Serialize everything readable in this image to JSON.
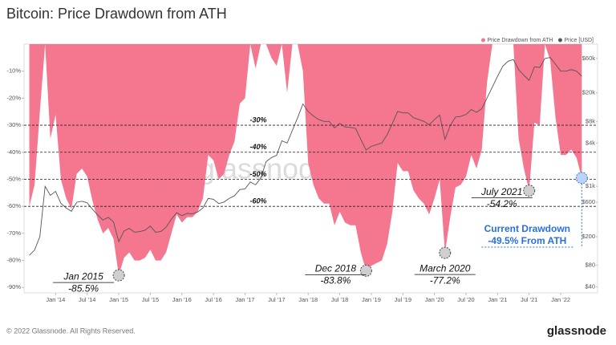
{
  "chart_data": {
    "type": "area",
    "title": "Bitcoin: Price Drawdown from ATH",
    "legend_position": "top-right",
    "x": [
      "2013-08",
      "2013-09",
      "2013-10",
      "2013-11",
      "2013-12",
      "2014-01",
      "2014-02",
      "2014-03",
      "2014-04",
      "2014-05",
      "2014-06",
      "2014-07",
      "2014-08",
      "2014-09",
      "2014-10",
      "2014-11",
      "2014-12",
      "2015-01",
      "2015-02",
      "2015-03",
      "2015-04",
      "2015-05",
      "2015-06",
      "2015-07",
      "2015-08",
      "2015-09",
      "2015-10",
      "2015-11",
      "2015-12",
      "2016-01",
      "2016-02",
      "2016-03",
      "2016-04",
      "2016-05",
      "2016-06",
      "2016-07",
      "2016-08",
      "2016-09",
      "2016-10",
      "2016-11",
      "2016-12",
      "2017-01",
      "2017-02",
      "2017-03",
      "2017-04",
      "2017-05",
      "2017-06",
      "2017-07",
      "2017-08",
      "2017-09",
      "2017-10",
      "2017-11",
      "2017-12",
      "2018-01",
      "2018-02",
      "2018-03",
      "2018-04",
      "2018-05",
      "2018-06",
      "2018-07",
      "2018-08",
      "2018-09",
      "2018-10",
      "2018-11",
      "2018-12",
      "2019-01",
      "2019-02",
      "2019-03",
      "2019-04",
      "2019-05",
      "2019-06",
      "2019-07",
      "2019-08",
      "2019-09",
      "2019-10",
      "2019-11",
      "2019-12",
      "2020-01",
      "2020-02",
      "2020-03",
      "2020-04",
      "2020-05",
      "2020-06",
      "2020-07",
      "2020-08",
      "2020-09",
      "2020-10",
      "2020-11",
      "2020-12",
      "2021-01",
      "2021-02",
      "2021-03",
      "2021-04",
      "2021-05",
      "2021-06",
      "2021-07",
      "2021-08",
      "2021-09",
      "2021-10",
      "2021-11",
      "2021-12",
      "2022-01",
      "2022-02",
      "2022-03",
      "2022-04",
      "2022-05"
    ],
    "series": [
      {
        "name": "Price Drawdown from ATH",
        "color": "#f4768f",
        "type": "area",
        "values": [
          -60,
          -52,
          -25,
          0,
          -35,
          -26,
          -50,
          -57,
          -61,
          -48,
          -46,
          -49,
          -58,
          -65,
          -70,
          -68,
          -72,
          -85.5,
          -79,
          -77,
          -80,
          -80,
          -79,
          -76,
          -80,
          -80,
          -77,
          -70,
          -63,
          -66,
          -64,
          -64,
          -62,
          -57,
          -41,
          -43,
          -50,
          -48,
          -41,
          -36,
          -22,
          -20,
          0,
          -9,
          0,
          0,
          -5,
          -8,
          0,
          -18,
          0,
          0,
          -10,
          -44,
          -52,
          -57,
          -59,
          -59,
          -67,
          -62,
          -66,
          -67,
          -67,
          -77,
          -83.8,
          -82,
          -81,
          -80,
          -74,
          -62,
          -44,
          -47,
          -47,
          -54,
          -57,
          -59,
          -63,
          -57,
          -50,
          -77.2,
          -64,
          -53,
          -52,
          -49,
          -41,
          -46,
          -39,
          -14,
          0,
          0,
          0,
          0,
          0,
          -35,
          -46,
          -54.2,
          -29,
          -30,
          0,
          -6,
          -27,
          -41,
          -41,
          -39,
          -42,
          -49.5
        ]
      },
      {
        "name": "Price [USD]",
        "color": "#555555",
        "type": "line",
        "axis": "y2",
        "values": [
          110,
          130,
          200,
          1000,
          750,
          850,
          580,
          500,
          450,
          600,
          620,
          590,
          480,
          400,
          340,
          370,
          320,
          170,
          240,
          260,
          230,
          235,
          245,
          280,
          230,
          235,
          270,
          350,
          430,
          390,
          420,
          415,
          440,
          500,
          680,
          660,
          575,
          605,
          680,
          740,
          900,
          920,
          1150,
          1050,
          1300,
          2200,
          2500,
          2700,
          4300,
          4000,
          6000,
          9000,
          14000,
          11000,
          9500,
          8500,
          8000,
          8000,
          6500,
          7500,
          6700,
          6600,
          6400,
          4500,
          3200,
          3600,
          3800,
          4000,
          5200,
          7500,
          11000,
          10500,
          10500,
          9000,
          8500,
          8000,
          7200,
          8500,
          9800,
          4500,
          7000,
          9200,
          9400,
          10000,
          11700,
          10700,
          12000,
          17000,
          24000,
          34000,
          47000,
          55000,
          58000,
          42000,
          35000,
          29800,
          46000,
          45000,
          60000,
          62000,
          50000,
          40000,
          40000,
          42000,
          40000,
          34000
        ]
      }
    ],
    "xlim": [
      "2013-07",
      "2022-08"
    ],
    "xticks": [
      {
        "value": "2014-01",
        "label": "Jan '14"
      },
      {
        "value": "2014-07",
        "label": "Jul '14"
      },
      {
        "value": "2015-01",
        "label": "Jan '15"
      },
      {
        "value": "2015-07",
        "label": "Jul '15"
      },
      {
        "value": "2016-01",
        "label": "Jan '16"
      },
      {
        "value": "2016-07",
        "label": "Jul '16"
      },
      {
        "value": "2017-01",
        "label": "Jan '17"
      },
      {
        "value": "2017-07",
        "label": "Jul '17"
      },
      {
        "value": "2018-01",
        "label": "Jan '18"
      },
      {
        "value": "2018-07",
        "label": "Jul '18"
      },
      {
        "value": "2019-01",
        "label": "Jan '19"
      },
      {
        "value": "2019-07",
        "label": "Jul '19"
      },
      {
        "value": "2020-01",
        "label": "Jan '20"
      },
      {
        "value": "2020-07",
        "label": "Jul '20"
      },
      {
        "value": "2021-01",
        "label": "Jan '21"
      },
      {
        "value": "2021-07",
        "label": "Jul '21"
      },
      {
        "value": "2022-01",
        "label": "Jan '22"
      }
    ],
    "ylim": [
      -92,
      0
    ],
    "yticks": [
      {
        "value": -10,
        "label": "-10%"
      },
      {
        "value": -20,
        "label": "-20%"
      },
      {
        "value": -30,
        "label": "-30%"
      },
      {
        "value": -40,
        "label": "-40%"
      },
      {
        "value": -50,
        "label": "-50%"
      },
      {
        "value": -60,
        "label": "-60%"
      },
      {
        "value": -70,
        "label": "-70%"
      },
      {
        "value": -80,
        "label": "-80%"
      },
      {
        "value": -90,
        "label": "-90%"
      }
    ],
    "y2lim": [
      33,
      95000
    ],
    "y2_log": true,
    "y2ticks": [
      {
        "value": 60000,
        "label": "$60k"
      },
      {
        "value": 20000,
        "label": "$20k"
      },
      {
        "value": 8000,
        "label": "$8k"
      },
      {
        "value": 4000,
        "label": "$4k"
      },
      {
        "value": 1000,
        "label": "$1k"
      },
      {
        "value": 600,
        "label": "$600"
      },
      {
        "value": 200,
        "label": "$200"
      },
      {
        "value": 80,
        "label": "$80"
      },
      {
        "value": 40,
        "label": "$40"
      }
    ],
    "reference_lines": [
      {
        "value": -30,
        "label": "-30%"
      },
      {
        "value": -40,
        "label": "-40%"
      },
      {
        "value": -50,
        "label": "-50%"
      },
      {
        "value": -60,
        "label": "-60%"
      }
    ],
    "annotations": [
      {
        "x": "2015-01",
        "value": -85.5,
        "title": "Jan 2015",
        "label": "-85.5%"
      },
      {
        "x": "2018-12",
        "value": -83.8,
        "title": "Dec 2018",
        "label": "-83.8%"
      },
      {
        "x": "2020-03",
        "value": -77.2,
        "title": "March 2020",
        "label": "-77.2%"
      },
      {
        "x": "2021-07",
        "value": -54.2,
        "title": "July 2021",
        "label": "-54.2%"
      },
      {
        "x": "2022-05",
        "value": -49.5,
        "title": "Current Drawdown",
        "label": "-49.5% From ATH"
      }
    ],
    "watermark": "glassnode"
  },
  "footer": {
    "copyright": "© 2022 Glassnode. All Rights Reserved.",
    "brand": "glassnode"
  }
}
